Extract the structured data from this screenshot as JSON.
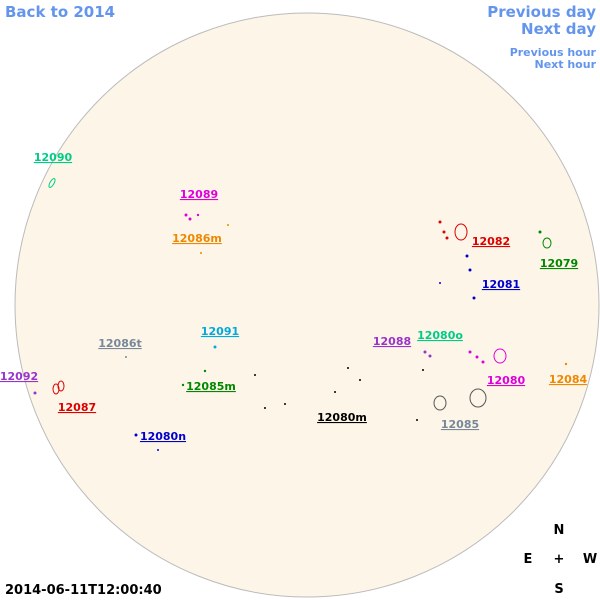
{
  "nav": {
    "back": "Back to 2014",
    "previous_day": "Previous day",
    "next_day": "Next day",
    "previous_hour": "Previous hour",
    "next_hour": "Next hour"
  },
  "regions": [
    {
      "label": "12090",
      "color": "#00cc88"
    },
    {
      "label": "12089",
      "color": "#dd00dd"
    },
    {
      "label": "12086m",
      "color": "#ee8800"
    },
    {
      "label": "12082",
      "color": "#dd0000"
    },
    {
      "label": "12079",
      "color": "#008800"
    },
    {
      "label": "12081",
      "color": "#0000cc"
    },
    {
      "label": "12091",
      "color": "#00aadd"
    },
    {
      "label": "12086t",
      "color": "#778899"
    },
    {
      "label": "12088",
      "color": "#9933cc"
    },
    {
      "label": "12080o",
      "color": "#00cc88"
    },
    {
      "label": "12092",
      "color": "#9933cc"
    },
    {
      "label": "12084",
      "color": "#ee8800"
    },
    {
      "label": "12085m",
      "color": "#008800"
    },
    {
      "label": "12080",
      "color": "#dd00dd"
    },
    {
      "label": "12087",
      "color": "#dd0000"
    },
    {
      "label": "12080m",
      "color": "#000000"
    },
    {
      "label": "12085",
      "color": "#778899"
    },
    {
      "label": "12080n",
      "color": "#0000cc"
    }
  ],
  "compass": {
    "north": "N",
    "east": "E",
    "center": "+",
    "west": "W",
    "south": "S"
  },
  "timestamp": "2014-06-11T12:00:40"
}
